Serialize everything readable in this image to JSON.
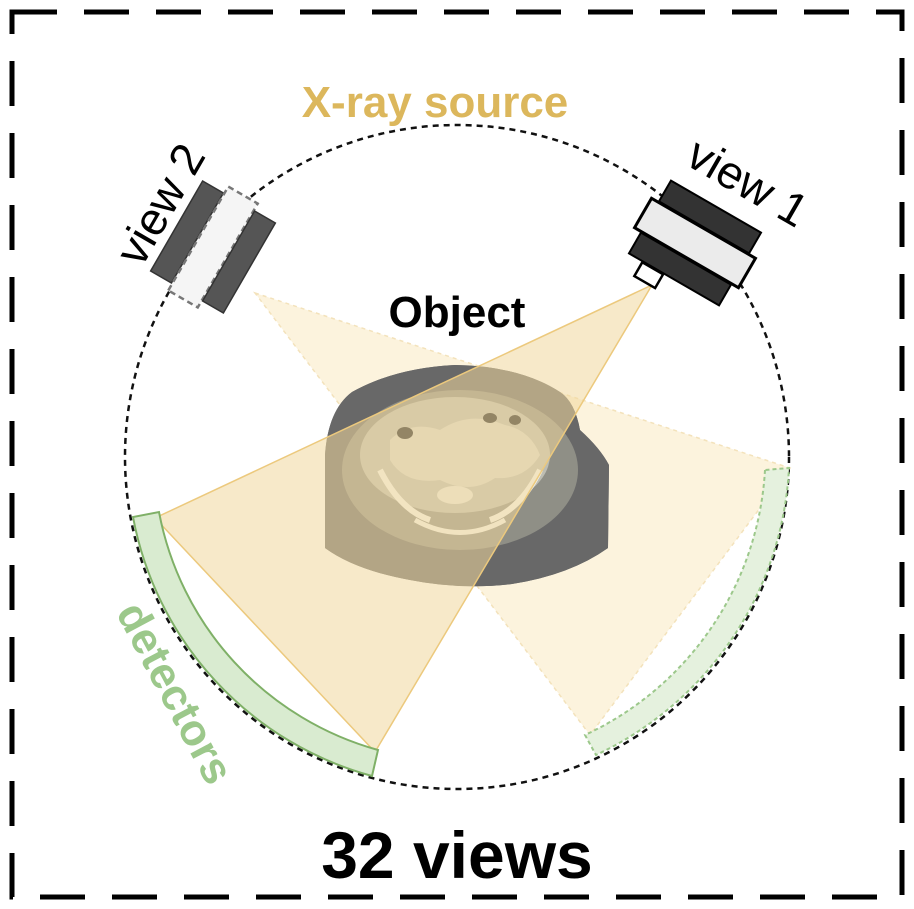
{
  "labels": {
    "source": "X-ray source",
    "view1": "view 1",
    "view2": "view 2",
    "object": "Object",
    "detectors": "detectors",
    "views_count": "32 views"
  },
  "colors": {
    "source_label": "#dcb75c",
    "beam_active": "#f1d79c",
    "beam_faded": "#fbefd2",
    "detector_fill": "#d9ebd0",
    "detector_stroke": "#7fb067",
    "detector_label": "#9cc88b",
    "tube_dark": "#333333",
    "tube_light": "#ebebeb",
    "object_tissue": "#6e6e6e",
    "frame": "#000000"
  },
  "icons": {
    "view1_tube": "xray-tube-icon",
    "view2_tube": "xray-tube-icon",
    "object": "ct-slice-icon"
  }
}
